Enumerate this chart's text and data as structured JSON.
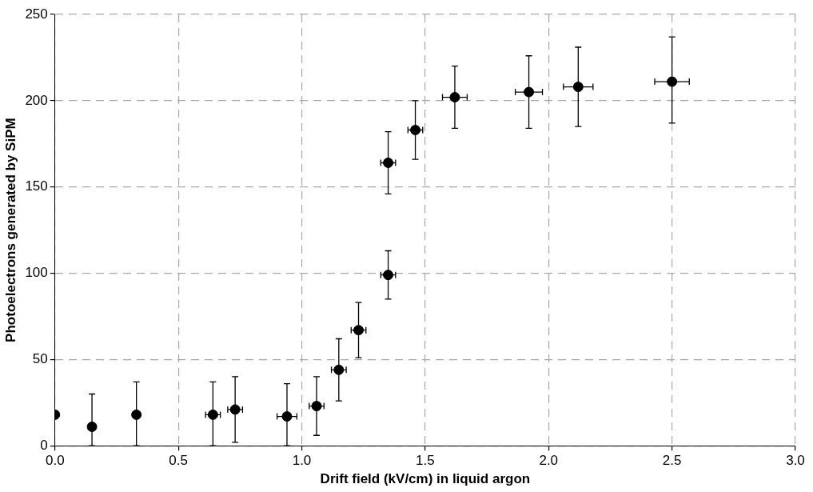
{
  "chart_data": {
    "type": "scatter",
    "xlabel": "Drift field (kV/cm) in liquid argon",
    "ylabel": "Photoelectrons generated by SiPM",
    "x": [
      0.0,
      0.15,
      0.33,
      0.64,
      0.73,
      0.94,
      1.06,
      1.15,
      1.23,
      1.35,
      1.35,
      1.46,
      1.62,
      1.92,
      2.12,
      2.5
    ],
    "values": [
      18,
      11,
      18,
      18,
      21,
      17,
      23,
      44,
      67,
      99,
      164,
      183,
      202,
      205,
      208,
      211
    ],
    "errors": [
      null,
      [
        0,
        30
      ],
      [
        0,
        37
      ],
      [
        0,
        37
      ],
      [
        2,
        40
      ],
      [
        0,
        36
      ],
      [
        6,
        40
      ],
      [
        26,
        62
      ],
      [
        51,
        83
      ],
      [
        85,
        113
      ],
      [
        146,
        182
      ],
      [
        166,
        200
      ],
      [
        184,
        220
      ],
      [
        184,
        226
      ],
      [
        185,
        231
      ],
      [
        187,
        237
      ]
    ],
    "xerrors": [
      null,
      null,
      null,
      0.03,
      0.03,
      0.04,
      0.03,
      0.03,
      0.03,
      0.03,
      0.03,
      0.03,
      0.05,
      0.055,
      0.06,
      0.07
    ],
    "color": "#000000",
    "marker": "circle",
    "grid": true,
    "xlim": [
      0,
      3
    ],
    "ylim": [
      0,
      250
    ],
    "xticks": [
      {
        "value": 0,
        "label": "0.0"
      },
      {
        "value": 0.5,
        "label": "0.5"
      },
      {
        "value": 1,
        "label": "1.0"
      },
      {
        "value": 1.5,
        "label": "1.5"
      },
      {
        "value": 2,
        "label": "2.0"
      },
      {
        "value": 2.5,
        "label": "2.5"
      },
      {
        "value": 3,
        "label": "3.0"
      }
    ],
    "yticks": [
      0,
      50,
      100,
      150,
      200,
      250
    ]
  }
}
